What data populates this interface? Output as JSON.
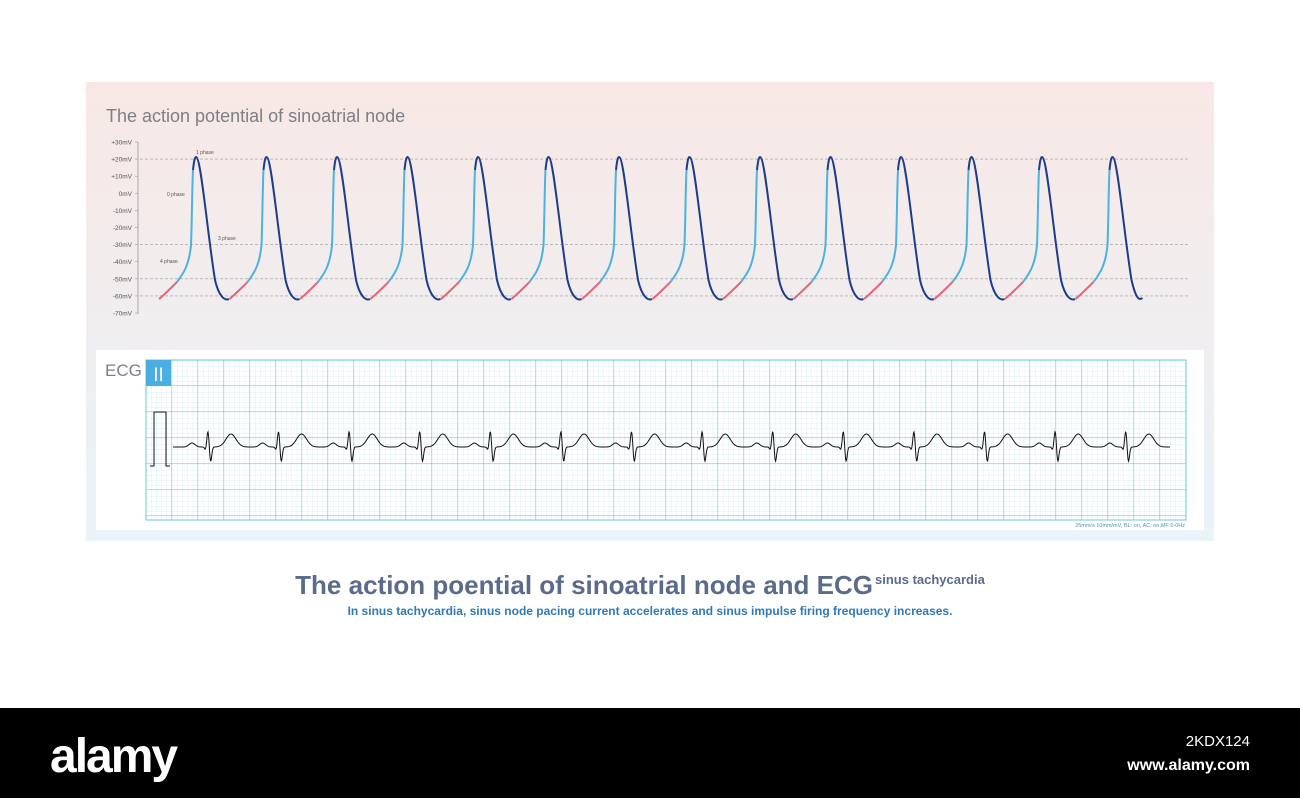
{
  "action_potential": {
    "title": "The action potential of sinoatrial node",
    "y_labels": [
      "+30mV",
      "+20mV",
      "+10mV",
      "0mV",
      "-10mV",
      "-20mV",
      "-30mV",
      "-40mV",
      "-50mV",
      "-60mV",
      "-70mV"
    ],
    "phase_labels": [
      "1 phase",
      "0 phase",
      "3 phase",
      "4 phase"
    ]
  },
  "ecg": {
    "label": "ECG",
    "lead": "II",
    "settings": "25mm/s  10mm/mV, BL: on, AC: on,MF:0-0Hz"
  },
  "caption": {
    "title": "The action poential of sinoatrial node and ECG",
    "superscript": "sinus tachycardia",
    "subtitle": "In sinus tachycardia, sinus node pacing current accelerates and sinus impulse firing frequency increases."
  },
  "footer": {
    "brand": "alamy",
    "image_id": "2KDX124",
    "url": "www.alamy.com"
  }
}
